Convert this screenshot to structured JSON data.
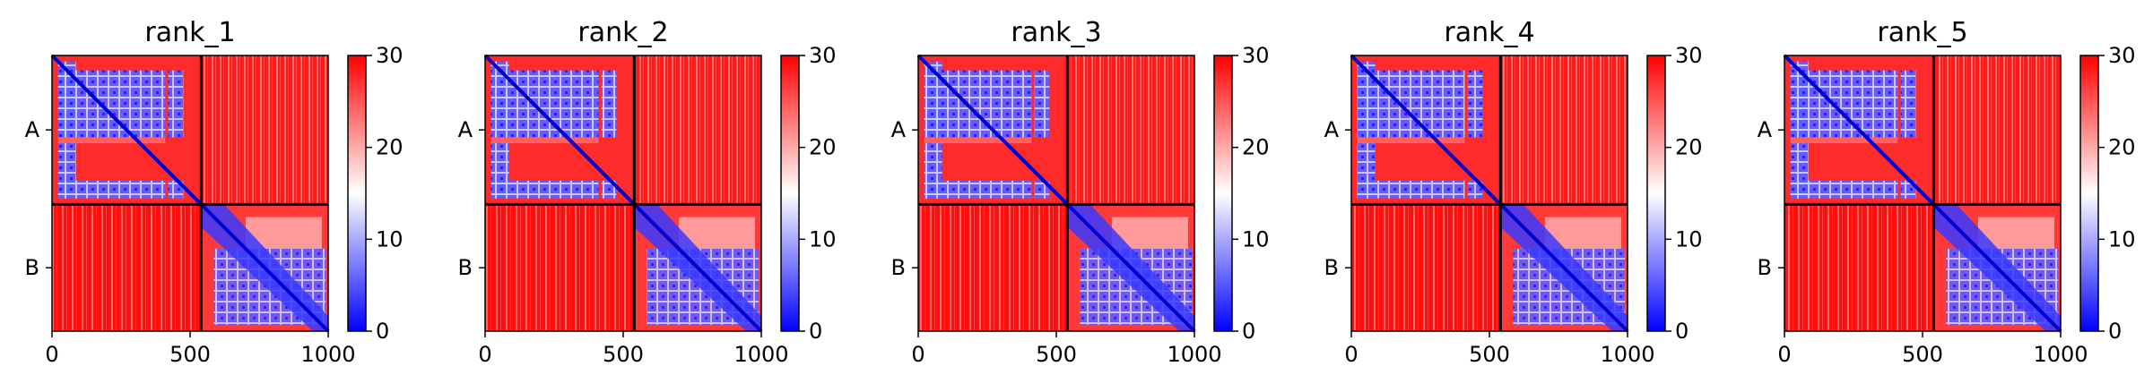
{
  "chart_data": {
    "type": "heatmap",
    "colormap": [
      "#0000ff",
      "#ffffff",
      "#ff0000"
    ],
    "colorbar": {
      "min": 0,
      "max": 30,
      "ticks": [
        0,
        10,
        20,
        30
      ]
    },
    "x_ticks": [
      0,
      500,
      1000
    ],
    "axis_range": [
      0,
      1000
    ],
    "chain_boundary": 540,
    "chains": [
      {
        "label": "A",
        "start": 0,
        "end": 540
      },
      {
        "label": "B",
        "start": 540,
        "end": 1000
      }
    ],
    "panels": [
      {
        "title": "rank_1"
      },
      {
        "title": "rank_2"
      },
      {
        "title": "rank_3"
      },
      {
        "title": "rank_4"
      },
      {
        "title": "rank_5"
      }
    ]
  }
}
